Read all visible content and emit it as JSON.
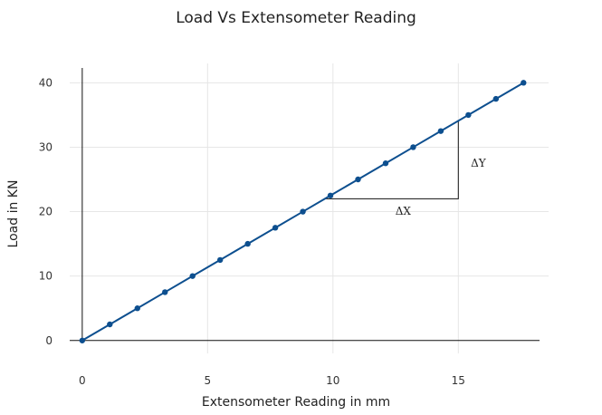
{
  "chart_data": {
    "type": "line",
    "title": "Load Vs Extensometer Reading",
    "xlabel": "Extensometer Reading in mm",
    "ylabel": "Load in KN",
    "xlim": [
      -0.5,
      18.6
    ],
    "ylim": [
      -2,
      43
    ],
    "x_ticks": [
      0,
      5,
      10,
      15
    ],
    "y_ticks": [
      0,
      10,
      20,
      30,
      40
    ],
    "grid": true,
    "series": [
      {
        "color": "#0d4f8f",
        "x": [
          0,
          1.1,
          2.2,
          3.3,
          4.4,
          5.5,
          6.6,
          7.7,
          8.8,
          9.9,
          11.0,
          12.1,
          13.2,
          14.3,
          15.4,
          16.5,
          17.6
        ],
        "y": [
          0,
          2.5,
          5,
          7.5,
          10,
          12.5,
          15,
          17.5,
          20,
          22.5,
          25,
          27.5,
          30,
          32.5,
          35,
          37.5,
          40
        ]
      }
    ],
    "annotations": [
      {
        "text": "ΔY",
        "x": 15.8,
        "y": 27
      },
      {
        "text": "ΔX",
        "x": 12.8,
        "y": 19.5
      }
    ],
    "slope_triangle": {
      "x1": 9.7,
      "x2": 15.0,
      "y1": 22,
      "y2": 34.2
    }
  }
}
